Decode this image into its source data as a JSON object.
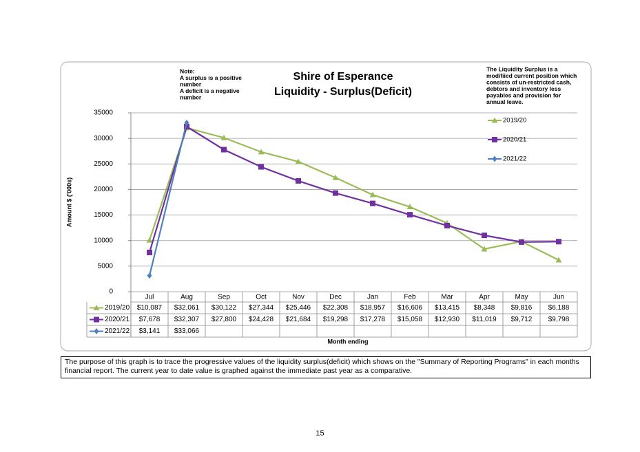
{
  "chart_data": {
    "type": "line",
    "title": [
      "Shire of Esperance",
      "Liquidity - Surplus(Deficit)"
    ],
    "note_left": [
      "Note:",
      "A surplus is a positive",
      "number",
      "A deficit is a negative",
      "number"
    ],
    "note_right": [
      "The Liquidity Surplus is a",
      "modifiied current position which",
      "consists of  un-restricted cash,",
      "debtors and inventory less",
      "payables and provision for",
      "annual leave."
    ],
    "y_label": "Amount $ ('000s)",
    "x_label": "Month ending",
    "categories": [
      "Jul",
      "Aug",
      "Sep",
      "Oct",
      "Nov",
      "Dec",
      "Jan",
      "Feb",
      "Mar",
      "Apr",
      "May",
      "Jun"
    ],
    "series": [
      {
        "name": "2019/20",
        "color": "#9bbb59",
        "marker": "triangle",
        "values": [
          10087,
          32061,
          30122,
          27344,
          25446,
          22308,
          18957,
          16606,
          13415,
          8348,
          9816,
          6188
        ],
        "value_labels": [
          "$10,087",
          "$32,061",
          "$30,122",
          "$27,344",
          "$25,446",
          "$22,308",
          "$18,957",
          "$16,606",
          "$13,415",
          "$8,348",
          "$9,816",
          "$6,188"
        ]
      },
      {
        "name": "2020/21",
        "color": "#7030a0",
        "marker": "square",
        "values": [
          7678,
          32307,
          27800,
          24428,
          21684,
          19298,
          17278,
          15058,
          12930,
          11019,
          9712,
          9798
        ],
        "value_labels": [
          "$7,678",
          "$32,307",
          "$27,800",
          "$24,428",
          "$21,684",
          "$19,298",
          "$17,278",
          "$15,058",
          "$12,930",
          "$11,019",
          "$9,712",
          "$9,798"
        ]
      },
      {
        "name": "2021/22",
        "color": "#4f81bd",
        "marker": "diamond",
        "values": [
          3141,
          33066,
          null,
          null,
          null,
          null,
          null,
          null,
          null,
          null,
          null,
          null
        ],
        "value_labels": [
          "$3,141",
          "$33,066",
          null,
          null,
          null,
          null,
          null,
          null,
          null,
          null,
          null,
          null
        ]
      }
    ],
    "ylim": [
      0,
      35000
    ],
    "yticks": [
      0,
      5000,
      10000,
      15000,
      20000,
      25000,
      30000,
      35000
    ],
    "grid": true,
    "legend": "right"
  },
  "description": "The purpose of this graph is to trace the progressive values of the liquidity surplus(deficit) which shows on the \"Summary of Reporting Programs\" in each months financial report. The current year to date value is graphed against the immediate past year as a comparative.",
  "page_number": "15"
}
